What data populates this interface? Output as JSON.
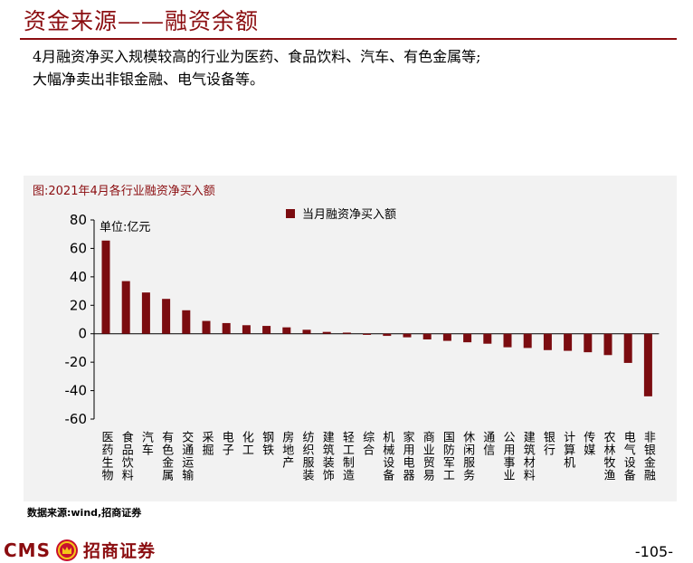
{
  "page": {
    "title": "资金来源——融资余额",
    "summary": [
      "4月融资净买入规模较高的行业为医药、食品饮料、汽车、有色金属等;",
      "大幅净卖出非银金融、电气设备等。"
    ],
    "source": "数据来源:wind,招商证券",
    "brand_cms": "CMS",
    "brand_name": "招商证券",
    "page_number": "-105-",
    "accent_color": "#8b0d10"
  },
  "chart_data": {
    "type": "bar",
    "title": "图:2021年4月各行业融资净买入额",
    "unit_label": "单位:亿元",
    "ylim": [
      -60,
      80
    ],
    "yticks": [
      80,
      60,
      40,
      20,
      0,
      -20,
      -40,
      -60
    ],
    "grid": false,
    "legend_position": "top-center",
    "bar_color": "#7b0c10",
    "categories": [
      "医药生物",
      "食品饮料",
      "汽车",
      "有色金属",
      "交通运输",
      "采掘",
      "电子",
      "化工",
      "钢铁",
      "房地产",
      "纺织服装",
      "建筑装饰",
      "轻工制造",
      "综合",
      "机械设备",
      "家用电器",
      "商业贸易",
      "国防军工",
      "休闲服务",
      "通信",
      "公用事业",
      "建筑材料",
      "银行",
      "计算机",
      "传媒",
      "农林牧渔",
      "电气设备",
      "非银金融"
    ],
    "series": [
      {
        "name": "当月融资净买入额",
        "values": [
          65.5,
          37,
          29,
          24.5,
          16.5,
          9,
          7.5,
          6,
          5.5,
          4.5,
          2.8,
          1.3,
          0.8,
          -0.8,
          -1.5,
          -2.5,
          -4,
          -5,
          -6,
          -7,
          -9.5,
          -10,
          -11.5,
          -12,
          -13,
          -15,
          -20.5,
          -44
        ]
      }
    ]
  }
}
